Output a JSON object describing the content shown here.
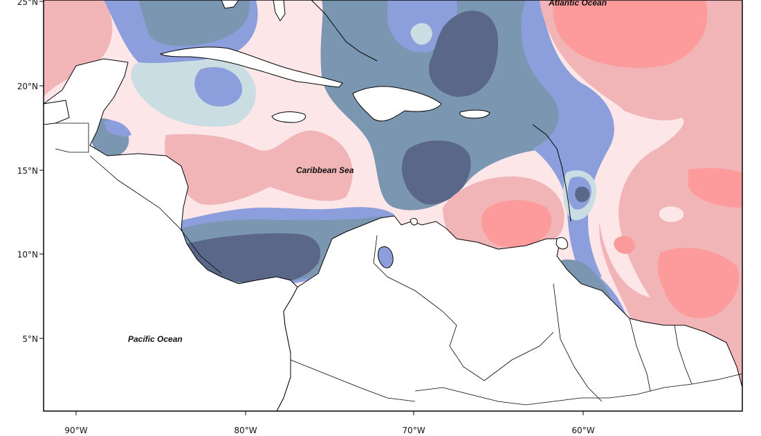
{
  "map": {
    "labels": {
      "atlantic": "Atlantic Ocean",
      "caribbean": "Caribbean Sea",
      "pacific": "Pacific Ocean"
    },
    "lat_ticks": [
      "25°N",
      "20°N",
      "15°N",
      "10°N",
      "5°N"
    ],
    "lon_ticks": [
      "90°W",
      "80°W",
      "70°W",
      "60°W"
    ],
    "colors": {
      "dark_slate": "#5a6789",
      "slate": "#7b96b0",
      "blue": "#8c9fdc",
      "pale_blue": "#c9dde3",
      "pale_pink": "#fde6e8",
      "light_pink": "#fad2d6",
      "pink": "#f1b5b7",
      "salmon": "#fd9a9b",
      "land": "#ffffff"
    }
  }
}
